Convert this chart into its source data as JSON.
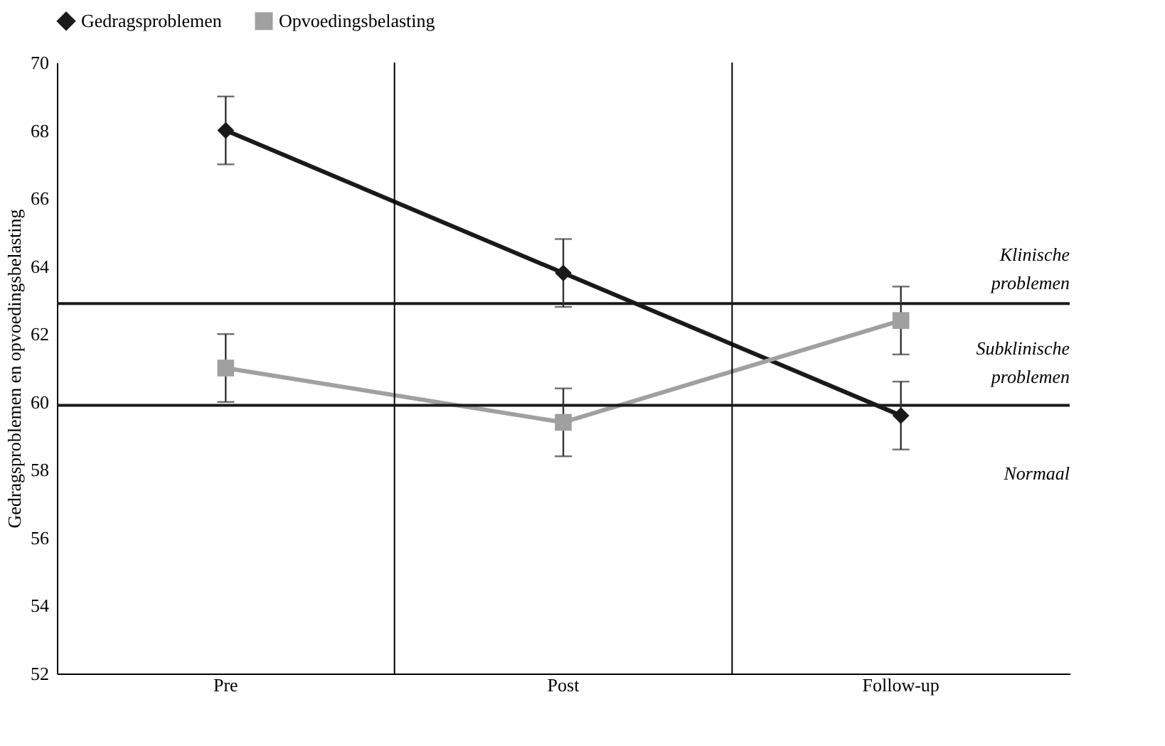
{
  "chart_data": {
    "type": "line",
    "ylabel": "Gedragsproblemen en opvoedingsbelasting",
    "categories": [
      "Pre",
      "Post",
      "Follow-up"
    ],
    "ylim": [
      52,
      70
    ],
    "yticks": [
      52,
      54,
      56,
      58,
      60,
      62,
      64,
      66,
      68,
      70
    ],
    "grid": "x",
    "legend": "top",
    "series": [
      {
        "name": "Gedragsproblemen",
        "color": "#1a1a1a",
        "marker": "diamond",
        "values": [
          68,
          63.8,
          59.6
        ],
        "errors": [
          1,
          1,
          1
        ]
      },
      {
        "name": "Opvoedingsbelasting",
        "color": "#a0a0a0",
        "marker": "square",
        "values": [
          61,
          59.4,
          62.4
        ],
        "errors": [
          1,
          1,
          1
        ]
      }
    ],
    "ref_lines": [
      {
        "axis": "y",
        "value": 62.9,
        "color": "#1a1a1a"
      },
      {
        "axis": "y",
        "value": 59.9,
        "color": "#1a1a1a"
      }
    ],
    "annotations": [
      "Klinische problemen",
      "Subklinische problemen",
      "Normaal"
    ]
  }
}
